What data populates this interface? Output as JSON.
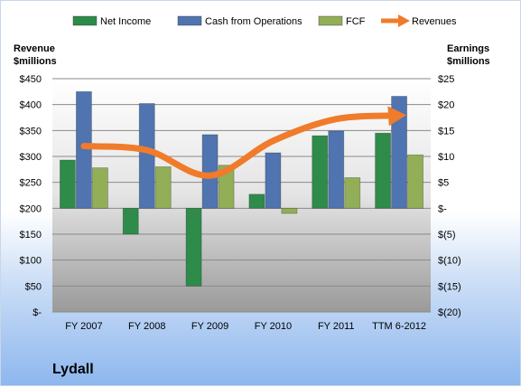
{
  "chart_data": {
    "type": "bar",
    "title": "",
    "company": "Lydall",
    "categories": [
      "FY 2007",
      "FY 2008",
      "FY 2009",
      "FY 2010",
      "FY 2011",
      "TTM 6-2012"
    ],
    "left_axis": {
      "title_line1": "Revenue",
      "title_line2": "$millions",
      "range": [
        0,
        450
      ],
      "ticks": [
        450,
        400,
        350,
        300,
        250,
        200,
        150,
        100,
        50,
        0
      ],
      "tick_labels": [
        "$450",
        "$400",
        "$350",
        "$300",
        "$250",
        "$200",
        "$150",
        "$100",
        "$50",
        "$-"
      ]
    },
    "right_axis": {
      "title_line1": "Earnings",
      "title_line2": "$millions",
      "range": [
        -20,
        25
      ],
      "ticks": [
        25,
        20,
        15,
        10,
        5,
        0,
        -5,
        -10,
        -15,
        -20
      ],
      "tick_labels": [
        "$25",
        "$20",
        "$15",
        "$10",
        "$5",
        "$-",
        "$(5)",
        "$(10)",
        "$(15)",
        "$(20)"
      ]
    },
    "series": [
      {
        "name": "Net Income",
        "axis": "right",
        "kind": "bar",
        "values": [
          9.3,
          -5.0,
          -15.0,
          2.7,
          14.0,
          14.5
        ]
      },
      {
        "name": "Cash from Operations",
        "axis": "right",
        "kind": "bar",
        "values": [
          22.5,
          20.2,
          14.2,
          10.7,
          14.9,
          21.6
        ]
      },
      {
        "name": "FCF",
        "axis": "right",
        "kind": "bar",
        "values": [
          7.8,
          8.0,
          8.3,
          -1.0,
          5.9,
          10.3
        ]
      },
      {
        "name": "Revenues",
        "axis": "left",
        "kind": "line",
        "values": [
          320,
          312,
          263,
          330,
          372,
          379
        ]
      }
    ],
    "colors": {
      "Net Income": "#2e8b4a",
      "Cash from Operations": "#4f74b0",
      "FCF": "#92ae56",
      "Revenues": "#f07b2a"
    },
    "grid": true,
    "legend": "top"
  }
}
